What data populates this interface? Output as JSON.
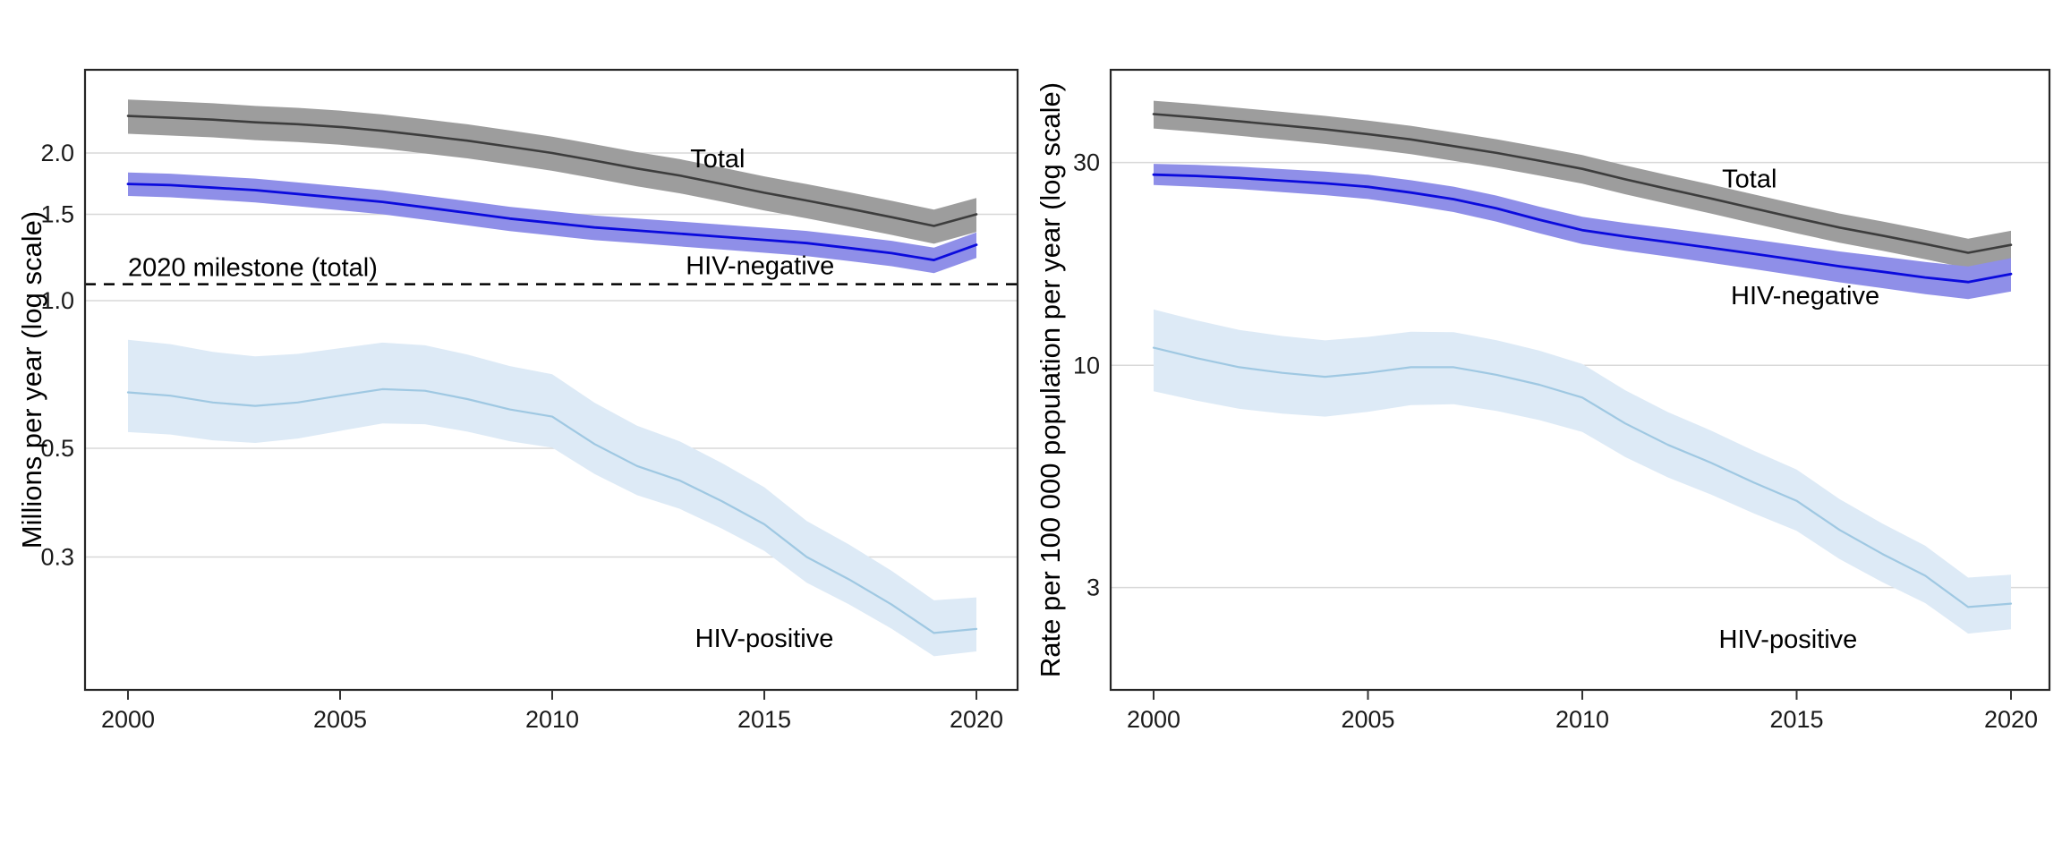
{
  "figure": {
    "description": "Two-panel line chart of TB deaths, 2000-2020, log scale, with uncertainty bands",
    "background": "#ffffff",
    "grid_color": "#d8d8d8",
    "border_color": "#262626",
    "tick_color": "#333333"
  },
  "chart_data": [
    {
      "panel": "left",
      "type": "line",
      "title": "",
      "xlabel": "",
      "ylabel": "Millions per year (log scale)",
      "scale": "log10",
      "grid": "horizontal",
      "legend_position": "none",
      "xlim": [
        1999,
        2021
      ],
      "ylim": [
        0.16,
        2.96
      ],
      "years": [
        2000,
        2001,
        2002,
        2003,
        2004,
        2005,
        2006,
        2007,
        2008,
        2009,
        2010,
        2011,
        2012,
        2013,
        2014,
        2015,
        2016,
        2017,
        2018,
        2019,
        2020
      ],
      "xtick_years": [
        2000,
        2005,
        2010,
        2015,
        2020
      ],
      "xtick_labels": [
        "2000",
        "2005",
        "2010",
        "2015",
        "2020"
      ],
      "ytick_values": [
        2.0,
        1.5,
        1.0,
        0.5,
        0.3
      ],
      "ytick_labels": [
        "2.0",
        "1.5",
        "1.0",
        "0.5",
        "0.3"
      ],
      "series": [
        {
          "name": "Total",
          "color": "#3d3d3d",
          "band_color": "#9d9d9d",
          "line_width": 2.6,
          "values": [
            2.38,
            2.36,
            2.34,
            2.31,
            2.29,
            2.26,
            2.22,
            2.17,
            2.12,
            2.06,
            2.0,
            1.93,
            1.86,
            1.8,
            1.73,
            1.66,
            1.6,
            1.54,
            1.48,
            1.42,
            1.5
          ],
          "band_upper_factor": [
            1.08,
            1.08
          ],
          "band_lower_factor": [
            0.92,
            0.92
          ],
          "label": {
            "text": "Total",
            "x": 2013.9,
            "y": 1.95
          }
        },
        {
          "name": "HIV-negative",
          "color": "#0b0bdd",
          "band_color": "#8f8fe8",
          "line_width": 2.8,
          "values": [
            1.73,
            1.72,
            1.7,
            1.68,
            1.65,
            1.62,
            1.59,
            1.55,
            1.51,
            1.47,
            1.44,
            1.41,
            1.39,
            1.37,
            1.35,
            1.33,
            1.31,
            1.28,
            1.25,
            1.21,
            1.3
          ],
          "band_upper_factor": [
            1.055,
            1.06
          ],
          "band_lower_factor": [
            0.945,
            0.94
          ],
          "label": {
            "text": "HIV-negative",
            "x": 2014.9,
            "y": 1.18
          }
        },
        {
          "name": "HIV-positive",
          "color": "#9fc8e2",
          "band_color": "#ddeaf6",
          "line_width": 2.2,
          "values": [
            0.65,
            0.64,
            0.62,
            0.61,
            0.62,
            0.64,
            0.66,
            0.655,
            0.63,
            0.6,
            0.58,
            0.51,
            0.46,
            0.43,
            0.39,
            0.35,
            0.3,
            0.27,
            0.24,
            0.21,
            0.214
          ],
          "band_upper_factor": [
            1.28,
            1.16
          ],
          "band_lower_factor": [
            0.83,
            0.9
          ],
          "label": {
            "text": "HIV-positive",
            "x": 2015.0,
            "y": 0.205
          }
        }
      ],
      "reference_line": {
        "text": "2020 milestone (total)",
        "value": 1.08,
        "style": "dashed",
        "color": "#000000",
        "label_x": 2000,
        "label_y": 1.17
      }
    },
    {
      "panel": "right",
      "type": "line",
      "title": "",
      "xlabel": "",
      "ylabel": "Rate per 100 000 population per year (log scale)",
      "scale": "log10",
      "grid": "horizontal",
      "legend_position": "none",
      "xlim": [
        1999,
        2021
      ],
      "ylim": [
        1.72,
        49.6
      ],
      "years": [
        2000,
        2001,
        2002,
        2003,
        2004,
        2005,
        2006,
        2007,
        2008,
        2009,
        2010,
        2011,
        2012,
        2013,
        2014,
        2015,
        2016,
        2017,
        2018,
        2019,
        2020
      ],
      "xtick_years": [
        2000,
        2005,
        2010,
        2015,
        2020
      ],
      "xtick_labels": [
        "2000",
        "2005",
        "2010",
        "2015",
        "2020"
      ],
      "ytick_values": [
        30,
        10,
        3
      ],
      "ytick_labels": [
        "30",
        "10",
        "3"
      ],
      "series": [
        {
          "name": "Total",
          "color": "#3d3d3d",
          "band_color": "#9d9d9d",
          "line_width": 2.6,
          "values": [
            39.0,
            38.3,
            37.5,
            36.7,
            35.9,
            35.0,
            34.0,
            32.8,
            31.6,
            30.3,
            29.0,
            27.4,
            26.0,
            24.7,
            23.4,
            22.2,
            21.1,
            20.2,
            19.3,
            18.4,
            19.2
          ],
          "band_upper_factor": [
            1.075,
            1.08
          ],
          "band_lower_factor": [
            0.925,
            0.92
          ],
          "label": {
            "text": "Total",
            "x": 2013.9,
            "y": 27.5
          }
        },
        {
          "name": "HIV-negative",
          "color": "#0b0bdd",
          "band_color": "#8f8fe8",
          "line_width": 2.8,
          "values": [
            28.1,
            27.9,
            27.6,
            27.2,
            26.8,
            26.3,
            25.5,
            24.6,
            23.4,
            22.0,
            20.8,
            20.1,
            19.5,
            18.9,
            18.3,
            17.7,
            17.1,
            16.6,
            16.1,
            15.7,
            16.4
          ],
          "band_upper_factor": [
            1.06,
            1.09
          ],
          "band_lower_factor": [
            0.945,
            0.91
          ],
          "label": {
            "text": "HIV-negative",
            "x": 2015.2,
            "y": 14.6
          }
        },
        {
          "name": "HIV-positive",
          "color": "#9fc8e2",
          "band_color": "#ddeaf6",
          "line_width": 2.2,
          "values": [
            11.0,
            10.4,
            9.9,
            9.6,
            9.4,
            9.6,
            9.9,
            9.9,
            9.5,
            9.0,
            8.4,
            7.3,
            6.5,
            5.9,
            5.3,
            4.8,
            4.1,
            3.6,
            3.2,
            2.7,
            2.75
          ],
          "band_upper_factor": [
            1.23,
            1.17
          ],
          "band_lower_factor": [
            0.79,
            0.87
          ],
          "label": {
            "text": "HIV-positive",
            "x": 2014.8,
            "y": 2.27
          }
        }
      ],
      "reference_line": null
    }
  ]
}
